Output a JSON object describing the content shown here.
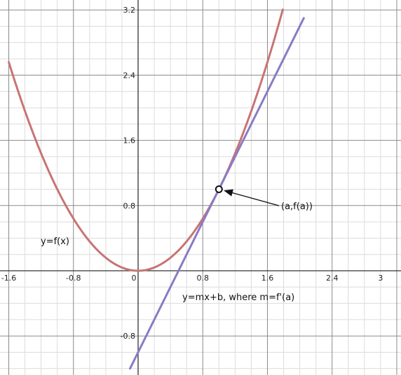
{
  "chart_data": {
    "type": "line",
    "title": "",
    "xlabel": "",
    "ylabel": "",
    "xlim": [
      -1.6,
      3.0
    ],
    "ylim": [
      -1.2,
      3.2
    ],
    "grid": true,
    "x_ticks": [
      "-1.6",
      "-0.8",
      "0",
      "0.8",
      "1.6",
      "2.4",
      "3"
    ],
    "y_ticks": [
      "3.2",
      "2.4",
      "1.6",
      "0.8",
      "-0.8"
    ],
    "series": [
      {
        "label": "y=f(x)",
        "expression": "y = x^2",
        "color": "#c87474",
        "x": [
          -1.6,
          -1.2,
          -0.8,
          -0.4,
          0,
          0.4,
          0.8,
          1.2,
          1.6,
          1.78
        ],
        "y": [
          2.56,
          1.44,
          0.64,
          0.16,
          0,
          0.16,
          0.64,
          1.44,
          2.56,
          3.17
        ]
      },
      {
        "label": "y=mx+b, where m=f'(a)",
        "expression": "y = 2x - 1",
        "color": "#8a7bc4",
        "x": [
          -0.1,
          2.05
        ],
        "y": [
          -1.2,
          3.1
        ]
      }
    ],
    "point": {
      "label": "(a,f(a))",
      "x": 1,
      "y": 1
    }
  }
}
